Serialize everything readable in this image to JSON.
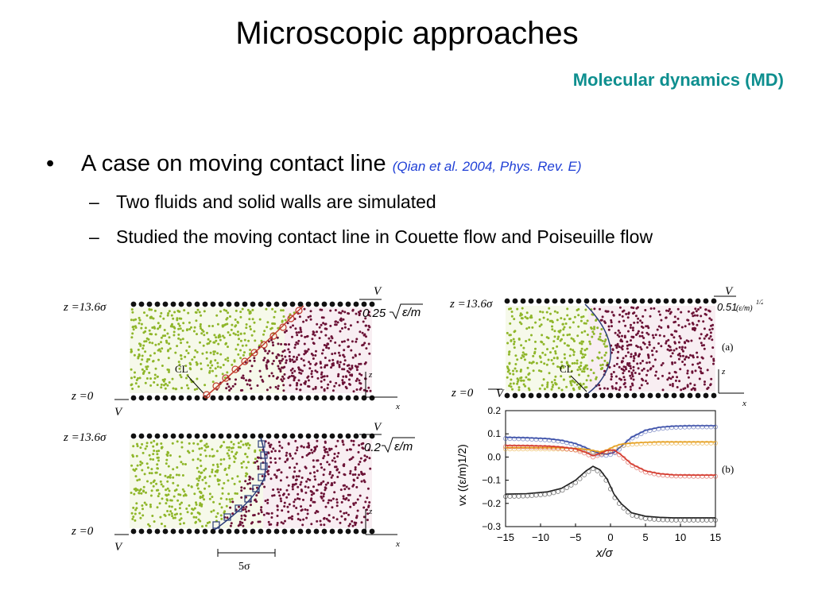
{
  "slide": {
    "title": "Microscopic approaches",
    "subtitle": "Molecular dynamics (MD)",
    "bullet": {
      "text": "A case on moving contact line",
      "citation": "(Qian et al. 2004, Phys. Rev. E)",
      "sub": [
        "Two fluids and solid walls are simulated",
        "Studied the moving contact line in Couette flow and Poiseuille flow"
      ]
    }
  },
  "figure_left": {
    "top_panel": {
      "z_top": "z =13.6σ",
      "z_bottom": "z =0",
      "cl": "CL",
      "speed": "0.25",
      "unit": "ε/m",
      "v": "V",
      "ax_z": "z",
      "ax_x": "x"
    },
    "bottom_panel": {
      "z_top": "z =13.6σ",
      "z_bottom": "z =0",
      "speed": "0.2",
      "unit": "ε/m",
      "v": "V",
      "ax_z": "z",
      "ax_x": "x",
      "scale": "5σ"
    }
  },
  "figure_right": {
    "panel_a": {
      "label": "(a)",
      "z_top": "z =13.6σ",
      "z_bottom": "z =0",
      "cl": "CL",
      "speed": "0.51",
      "unit": "(ε/m)",
      "exp": "1/2",
      "v": "V",
      "ax_z": "z",
      "ax_x": "x"
    },
    "panel_b_label": "(b)"
  },
  "chart_data": {
    "type": "line",
    "xlabel": "x/σ",
    "ylabel": "vx ((ε/m)1/2)",
    "xlim": [
      -15,
      15
    ],
    "ylim": [
      -0.3,
      0.2
    ],
    "xticks": [
      "−15",
      "−10",
      "−5",
      "0",
      "5",
      "10",
      "15"
    ],
    "yticks": [
      "0.2",
      "0.1",
      "0.0",
      "−0.1",
      "−0.2",
      "−0.3"
    ],
    "x": [
      -15,
      -12,
      -9,
      -7,
      -5,
      -3.5,
      -2.5,
      -1.5,
      -0.5,
      0.5,
      1.5,
      3,
      5,
      7,
      9,
      12,
      15
    ],
    "series": [
      {
        "color": "#3a4fa8",
        "values": [
          0.085,
          0.083,
          0.079,
          0.072,
          0.058,
          0.04,
          0.025,
          0.015,
          0.012,
          0.02,
          0.045,
          0.085,
          0.115,
          0.128,
          0.133,
          0.135,
          0.135
        ]
      },
      {
        "color": "#e6a020",
        "values": [
          0.04,
          0.04,
          0.04,
          0.039,
          0.037,
          0.033,
          0.028,
          0.022,
          0.03,
          0.045,
          0.055,
          0.06,
          0.063,
          0.065,
          0.065,
          0.065,
          0.065
        ]
      },
      {
        "color": "#d4382c",
        "values": [
          0.05,
          0.049,
          0.047,
          0.043,
          0.035,
          0.02,
          0.005,
          0.015,
          0.028,
          0.03,
          0.01,
          -0.03,
          -0.06,
          -0.072,
          -0.077,
          -0.078,
          -0.078
        ]
      },
      {
        "color": "#222222",
        "values": [
          -0.16,
          -0.158,
          -0.15,
          -0.135,
          -0.1,
          -0.06,
          -0.04,
          -0.055,
          -0.095,
          -0.16,
          -0.2,
          -0.24,
          -0.255,
          -0.26,
          -0.262,
          -0.262,
          -0.262
        ]
      }
    ]
  }
}
